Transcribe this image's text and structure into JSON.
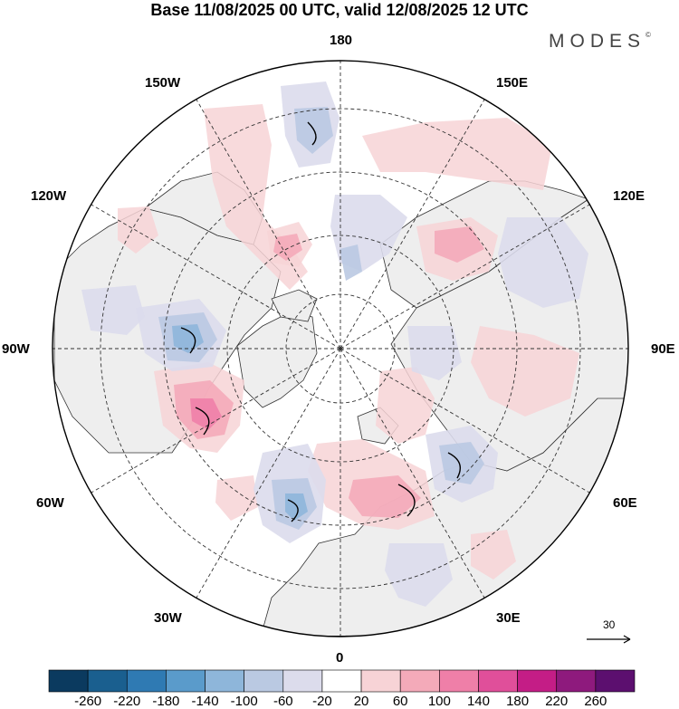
{
  "title": "Base 11/08/2025 00 UTC, valid 12/08/2025 12 UTC",
  "brand": {
    "name": "MODES",
    "mark": "©"
  },
  "longitude_labels": {
    "n180": "180",
    "e150": "150E",
    "e120": "120E",
    "e90": "90E",
    "e60": "60E",
    "e30": "30E",
    "n0": "0",
    "w30": "30W",
    "w60": "60W",
    "w90": "90W",
    "w120": "120W",
    "w150": "150W"
  },
  "wind_reference": {
    "value": "30"
  },
  "colorbar": {
    "colors": [
      "#0b3a5f",
      "#1a5f8f",
      "#2f7ab3",
      "#5a9bcb",
      "#8eb6da",
      "#bac9e2",
      "#dcdcec",
      "#ffffff",
      "#f7d3d6",
      "#f4aab9",
      "#ef7fa8",
      "#e04f9a",
      "#c41d86",
      "#8e1a7d",
      "#5c0f6f"
    ],
    "ticks": [
      "-260",
      "-220",
      "-180",
      "-140",
      "-100",
      "-60",
      "-20",
      "20",
      "60",
      "100",
      "140",
      "180",
      "220",
      "260"
    ]
  },
  "colors": {
    "land": "#eeeeee",
    "coast": "#333333",
    "grid": "#333333",
    "negative": "#8e9ad0",
    "positive": "#ef9aa6"
  }
}
